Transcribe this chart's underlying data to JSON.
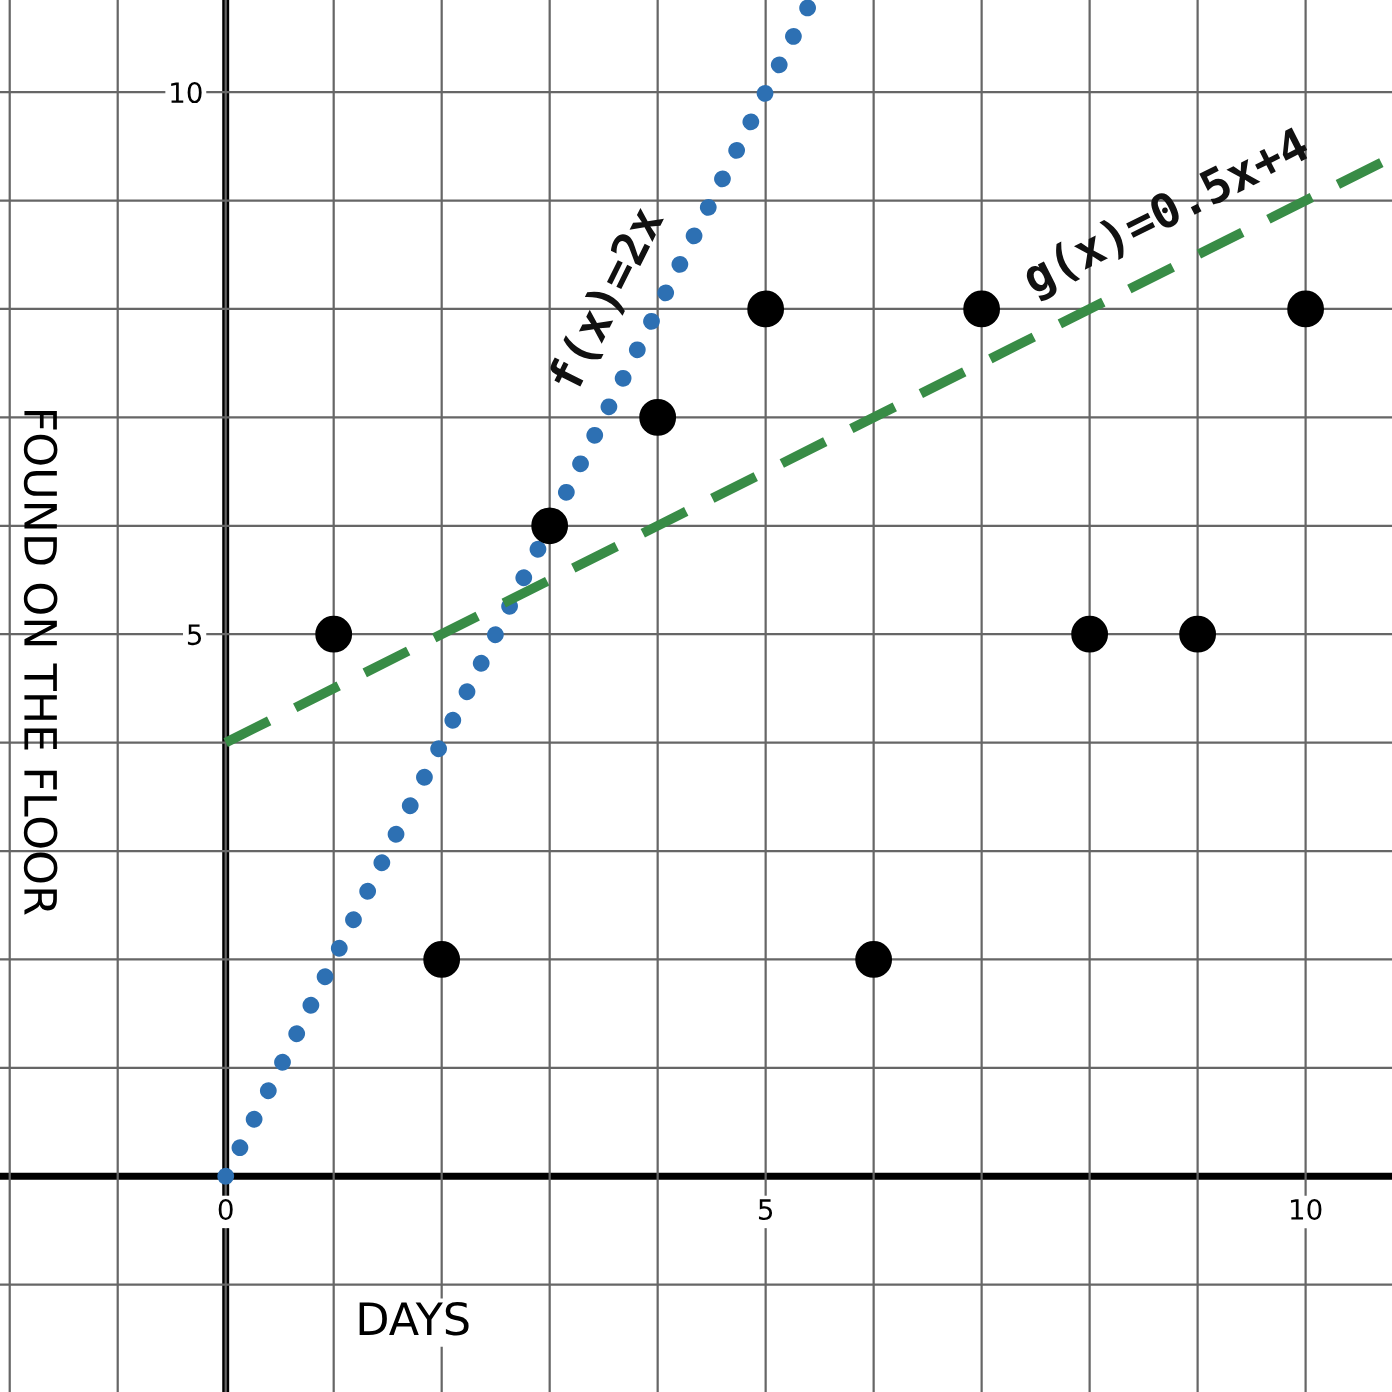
{
  "chart_data": {
    "type": "scatter",
    "xlabel": "DAYS",
    "ylabel": "FOUND ON THE FLOOR",
    "xlim": [
      -2.09,
      10.8
    ],
    "ylim": [
      -1.99,
      10.85
    ],
    "xticks": [
      {
        "value": -2,
        "label": null
      },
      {
        "value": -1,
        "label": null
      },
      0,
      {
        "value": 1,
        "label": null
      },
      {
        "value": 2,
        "label": null
      },
      {
        "value": 3,
        "label": null
      },
      {
        "value": 4,
        "label": null
      },
      5,
      {
        "value": 6,
        "label": null
      },
      {
        "value": 7,
        "label": null
      },
      {
        "value": 8,
        "label": null
      },
      {
        "value": 9,
        "label": null
      },
      10
    ],
    "yticks": [
      {
        "value": -1,
        "label": null
      },
      {
        "value": 1,
        "label": null
      },
      {
        "value": 2,
        "label": null
      },
      {
        "value": 3,
        "label": null
      },
      {
        "value": 4,
        "label": null
      },
      5,
      {
        "value": 6,
        "label": null
      },
      {
        "value": 7,
        "label": null
      },
      {
        "value": 8,
        "label": null
      },
      {
        "value": 9,
        "label": null
      },
      10
    ],
    "grid": true,
    "series": [
      {
        "color": "#000000",
        "marker": "circle",
        "x": [
          1,
          2,
          3,
          4,
          5,
          6,
          7,
          8,
          9,
          10
        ],
        "values": [
          5,
          2,
          6,
          7,
          8,
          2,
          8,
          5,
          5,
          8
        ]
      },
      {
        "type": "line",
        "name": "f(x)=2x",
        "color": "#2d70b3",
        "line_style": "dotted",
        "x": [
          0,
          5.4
        ],
        "values": [
          0,
          10.8
        ]
      },
      {
        "type": "line",
        "name": "g(x)=0.5x+4",
        "color": "#388c46",
        "line_style": "dashed",
        "x": [
          0,
          10.8
        ],
        "values": [
          4,
          9.4
        ]
      }
    ]
  }
}
